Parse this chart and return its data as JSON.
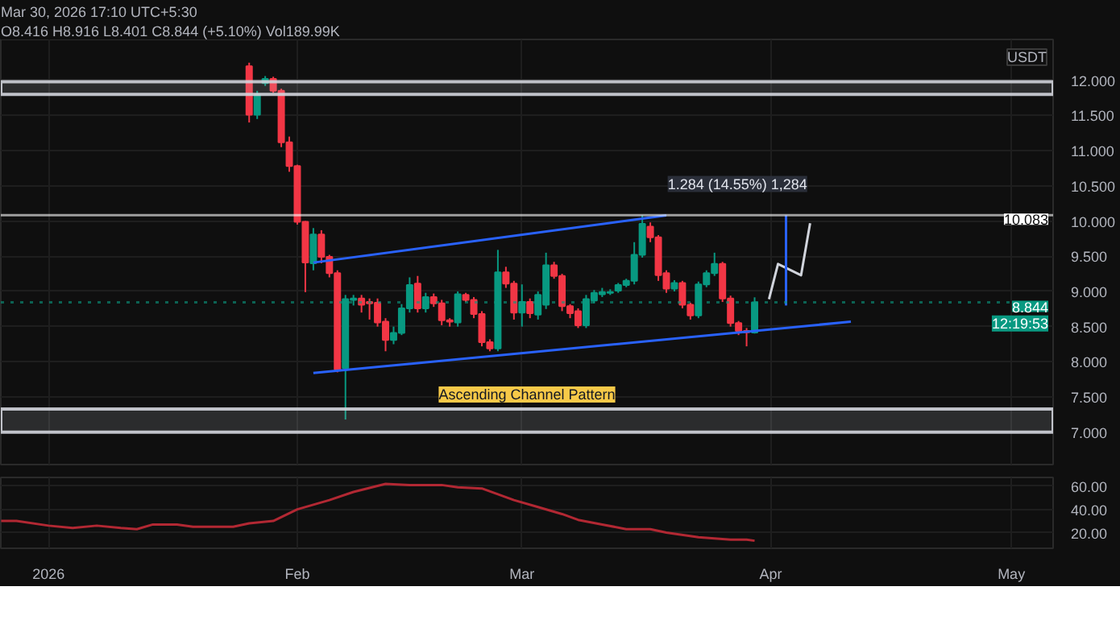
{
  "chart_data": [
    {
      "type": "candlestick",
      "ylabel": "USDT",
      "x": [
        "2026-01-26",
        "2026-01-27",
        "2026-01-28",
        "2026-01-29",
        "2026-01-30",
        "2026-01-31",
        "2026-02-01",
        "2026-02-02",
        "2026-02-03",
        "2026-02-04",
        "2026-02-05",
        "2026-02-06",
        "2026-02-07",
        "2026-02-08",
        "2026-02-09",
        "2026-02-10",
        "2026-02-11",
        "2026-02-12",
        "2026-02-13",
        "2026-02-14",
        "2026-02-15",
        "2026-02-16",
        "2026-02-17",
        "2026-02-18",
        "2026-02-19",
        "2026-02-20",
        "2026-02-21",
        "2026-02-22",
        "2026-02-23",
        "2026-02-24",
        "2026-02-25",
        "2026-02-26",
        "2026-02-27",
        "2026-02-28",
        "2026-03-01",
        "2026-03-02",
        "2026-03-03",
        "2026-03-04",
        "2026-03-05",
        "2026-03-06",
        "2026-03-07",
        "2026-03-08",
        "2026-03-09",
        "2026-03-10",
        "2026-03-11",
        "2026-03-12",
        "2026-03-13",
        "2026-03-14",
        "2026-03-15",
        "2026-03-16",
        "2026-03-17",
        "2026-03-18",
        "2026-03-19",
        "2026-03-20",
        "2026-03-21",
        "2026-03-22",
        "2026-03-23",
        "2026-03-24",
        "2026-03-25",
        "2026-03-26",
        "2026-03-27",
        "2026-03-28",
        "2026-03-29",
        "2026-03-30"
      ],
      "ohlc": [
        [
          12.2,
          12.25,
          11.4,
          11.51
        ],
        [
          11.51,
          11.85,
          11.45,
          11.8
        ],
        [
          11.96,
          12.06,
          11.92,
          12.02
        ],
        [
          12.02,
          12.05,
          11.82,
          11.85
        ],
        [
          11.85,
          11.88,
          11.05,
          11.12
        ],
        [
          11.12,
          11.2,
          10.7,
          10.78
        ],
        [
          10.78,
          10.8,
          9.95,
          9.99
        ],
        [
          9.99,
          10.0,
          8.99,
          9.41
        ],
        [
          9.4,
          9.9,
          9.3,
          9.81
        ],
        [
          9.81,
          9.87,
          9.4,
          9.49
        ],
        [
          9.49,
          9.52,
          9.2,
          9.26
        ],
        [
          9.26,
          9.3,
          7.85,
          7.89
        ],
        [
          7.91,
          8.95,
          7.18,
          8.89
        ],
        [
          8.88,
          8.95,
          8.8,
          8.9
        ],
        [
          8.9,
          8.95,
          8.7,
          8.81
        ],
        [
          8.85,
          8.9,
          8.6,
          8.83
        ],
        [
          8.84,
          8.9,
          8.5,
          8.56
        ],
        [
          8.57,
          8.62,
          8.15,
          8.31
        ],
        [
          8.31,
          8.5,
          8.25,
          8.41
        ],
        [
          8.41,
          8.82,
          8.38,
          8.76
        ],
        [
          8.76,
          9.2,
          8.7,
          9.09
        ],
        [
          9.11,
          9.22,
          8.7,
          8.76
        ],
        [
          8.76,
          8.98,
          8.7,
          8.92
        ],
        [
          8.92,
          8.97,
          8.78,
          8.83
        ],
        [
          8.83,
          8.88,
          8.52,
          8.59
        ],
        [
          8.59,
          8.62,
          8.5,
          8.57
        ],
        [
          8.56,
          9.0,
          8.5,
          8.96
        ],
        [
          8.95,
          8.98,
          8.85,
          8.88
        ],
        [
          8.88,
          8.92,
          8.62,
          8.68
        ],
        [
          8.68,
          8.72,
          8.22,
          8.28
        ],
        [
          8.28,
          8.32,
          8.15,
          8.19
        ],
        [
          8.19,
          9.59,
          8.15,
          9.27
        ],
        [
          9.27,
          9.35,
          9.05,
          9.11
        ],
        [
          9.11,
          9.15,
          8.6,
          8.7
        ],
        [
          8.7,
          9.1,
          8.5,
          8.85
        ],
        [
          8.85,
          8.9,
          8.62,
          8.69
        ],
        [
          8.67,
          9.0,
          8.6,
          8.95
        ],
        [
          8.81,
          9.55,
          8.75,
          9.37
        ],
        [
          9.37,
          9.42,
          9.18,
          9.22
        ],
        [
          9.22,
          9.25,
          8.72,
          8.79
        ],
        [
          8.79,
          8.82,
          8.62,
          8.69
        ],
        [
          8.72,
          8.76,
          8.48,
          8.52
        ],
        [
          8.52,
          8.95,
          8.48,
          8.89
        ],
        [
          8.87,
          9.02,
          8.83,
          8.98
        ],
        [
          8.96,
          9.05,
          8.92,
          8.99
        ],
        [
          8.98,
          9.03,
          8.95,
          8.99
        ],
        [
          9.01,
          9.12,
          8.98,
          9.09
        ],
        [
          9.09,
          9.18,
          9.06,
          9.15
        ],
        [
          9.15,
          9.7,
          9.1,
          9.52
        ],
        [
          9.52,
          10.08,
          9.48,
          9.96
        ],
        [
          9.92,
          9.98,
          9.7,
          9.77
        ],
        [
          9.77,
          9.8,
          9.15,
          9.23
        ],
        [
          9.26,
          9.3,
          8.98,
          9.04
        ],
        [
          9.04,
          9.16,
          9.0,
          9.12
        ],
        [
          9.12,
          9.15,
          8.76,
          8.81
        ],
        [
          8.81,
          8.84,
          8.6,
          8.66
        ],
        [
          8.66,
          9.14,
          8.62,
          9.1
        ],
        [
          9.1,
          9.3,
          9.06,
          9.26
        ],
        [
          9.26,
          9.55,
          9.22,
          9.39
        ],
        [
          9.39,
          9.42,
          8.85,
          8.9
        ],
        [
          8.9,
          8.94,
          8.5,
          8.55
        ],
        [
          8.55,
          8.58,
          8.38,
          8.44
        ],
        [
          8.44,
          8.48,
          8.22,
          8.42
        ],
        [
          8.416,
          8.916,
          8.401,
          8.844
        ]
      ],
      "colors": [
        "#f23645",
        "#089981",
        "#089981",
        "#f23645",
        "#f23645",
        "#f23645",
        "#f23645",
        "#f23645",
        "#089981",
        "#f23645",
        "#f23645",
        "#f23645",
        "#089981",
        "#089981",
        "#f23645",
        "#f23645",
        "#f23645",
        "#f23645",
        "#089981",
        "#089981",
        "#089981",
        "#f23645",
        "#089981",
        "#f23645",
        "#f23645",
        "#f23645",
        "#089981",
        "#f23645",
        "#f23645",
        "#f23645",
        "#f23645",
        "#089981",
        "#f23645",
        "#f23645",
        "#089981",
        "#f23645",
        "#089981",
        "#089981",
        "#f23645",
        "#f23645",
        "#f23645",
        "#f23645",
        "#089981",
        "#089981",
        "#089981",
        "#089981",
        "#089981",
        "#089981",
        "#089981",
        "#089981",
        "#f23645",
        "#f23645",
        "#f23645",
        "#089981",
        "#f23645",
        "#f23645",
        "#089981",
        "#089981",
        "#089981",
        "#f23645",
        "#f23645",
        "#f23645",
        "#f23645",
        "#089981"
      ],
      "series": [
        {
          "type": "line",
          "color": "#2962ff",
          "x": [
            "2026-02-03",
            "2026-03-19"
          ],
          "values": [
            9.41,
            10.08
          ]
        },
        {
          "type": "line",
          "color": "#2962ff",
          "x": [
            "2026-02-03",
            "2026-04-11"
          ],
          "values": [
            7.84,
            8.57
          ]
        },
        {
          "type": "line",
          "color": "#d1d4dc",
          "x": [
            "2026-03-31T19:00",
            "2026-04-01T22:00",
            "2026-04-04T19:00",
            "2026-04-05T22:00"
          ],
          "values": [
            8.89,
            9.39,
            9.23,
            9.97
          ]
        },
        {
          "type": "line",
          "color": "#2962ff",
          "x": [
            "2026-04-02T22:00",
            "2026-04-02T22:00"
          ],
          "values": [
            8.8,
            10.08
          ]
        }
      ],
      "xlim": [
        "2025-12-26T01:00",
        "2026-05-06T05:00"
      ],
      "xticks": [
        {
          "value": "2026-01-01",
          "label": null
        },
        {
          "value": "2026-02-01",
          "label": null
        },
        {
          "value": "2026-03-01",
          "label": null
        },
        {
          "value": "2026-04-01",
          "label": null
        },
        {
          "value": "2026-05-01",
          "label": null
        }
      ],
      "ylim": [
        6.54,
        12.58
      ],
      "yticks": [
        {
          "value": 7,
          "label": "7.000"
        },
        {
          "value": 7.5,
          "label": "7.500"
        },
        {
          "value": 8,
          "label": "8.000"
        },
        {
          "value": 8.5,
          "label": "8.500"
        },
        {
          "value": 9,
          "label": "9.000"
        },
        {
          "value": 9.5,
          "label": "9.500"
        },
        {
          "value": 10,
          "label": "10.000"
        },
        {
          "value": 10.5,
          "label": "10.500"
        },
        {
          "value": 11,
          "label": "11.000"
        },
        {
          "value": 11.5,
          "label": "11.500"
        },
        {
          "value": 12,
          "label": "12.000"
        }
      ],
      "tick_labels": "y",
      "grid": true,
      "ref_lines": [
        {
          "axis": "y",
          "value": 10.083,
          "label": "10.083",
          "color": "#ffffff"
        },
        {
          "axis": "y",
          "value": 8.844,
          "label": "8.844",
          "color": "#089981",
          "line_style": "dotted"
        }
      ],
      "bands": [
        {
          "axis": "y",
          "from": 11.8,
          "to": 11.98,
          "color": "#d1d4dc"
        },
        {
          "axis": "y",
          "from": 7.0,
          "to": 7.33,
          "color": "#d1d4dc"
        }
      ],
      "annotations": [
        "Mar 30, 2026 17:10 UTC+5:30",
        "O8.416 H8.916 L8.401 C8.844 (+5.10%) Vol189.99K",
        "Ascending Channel Pattern",
        "1.284 (14.55%) 1,284",
        "12:19:53"
      ]
    },
    {
      "type": "line",
      "series": [
        {
          "color": "#b22833",
          "x": [
            "2025-12-26T02:00",
            "2025-12-28",
            "2026-01-01",
            "2026-01-04",
            "2026-01-07",
            "2026-01-10",
            "2026-01-12",
            "2026-01-14",
            "2026-01-17",
            "2026-01-19",
            "2026-01-24",
            "2026-01-26",
            "2026-01-29",
            "2026-02-01",
            "2026-02-05",
            "2026-02-08",
            "2026-02-12",
            "2026-02-15",
            "2026-02-19",
            "2026-02-21",
            "2026-02-24",
            "2026-02-26",
            "2026-02-28",
            "2026-03-03",
            "2026-03-06",
            "2026-03-08",
            "2026-03-11",
            "2026-03-14",
            "2026-03-17",
            "2026-03-19",
            "2026-03-23",
            "2026-03-27",
            "2026-03-29",
            "2026-03-30"
          ],
          "values": [
            30,
            30,
            26,
            24,
            26,
            24,
            23,
            27,
            27,
            25,
            25,
            28,
            30,
            40,
            48,
            55,
            62,
            61,
            61,
            59,
            58,
            53,
            48,
            42,
            36,
            31,
            27,
            23,
            23,
            20,
            16,
            14,
            14,
            13
          ]
        }
      ],
      "xlim": [
        "2025-12-26T01:00",
        "2026-05-06T05:00"
      ],
      "xticks": [
        {
          "value": "2026-01-01",
          "label": "2026"
        },
        {
          "value": "2026-02-01",
          "label": "Feb"
        },
        {
          "value": "2026-03-01",
          "label": "Mar"
        },
        {
          "value": "2026-04-01",
          "label": "Apr"
        },
        {
          "value": "2026-05-01",
          "label": "May"
        }
      ],
      "ylim": [
        6.5,
        67.5
      ],
      "yticks": [
        {
          "value": 20,
          "label": "20.00"
        },
        {
          "value": 40,
          "label": "40.00"
        },
        {
          "value": 60,
          "label": "60.00"
        }
      ],
      "grid": true
    }
  ]
}
